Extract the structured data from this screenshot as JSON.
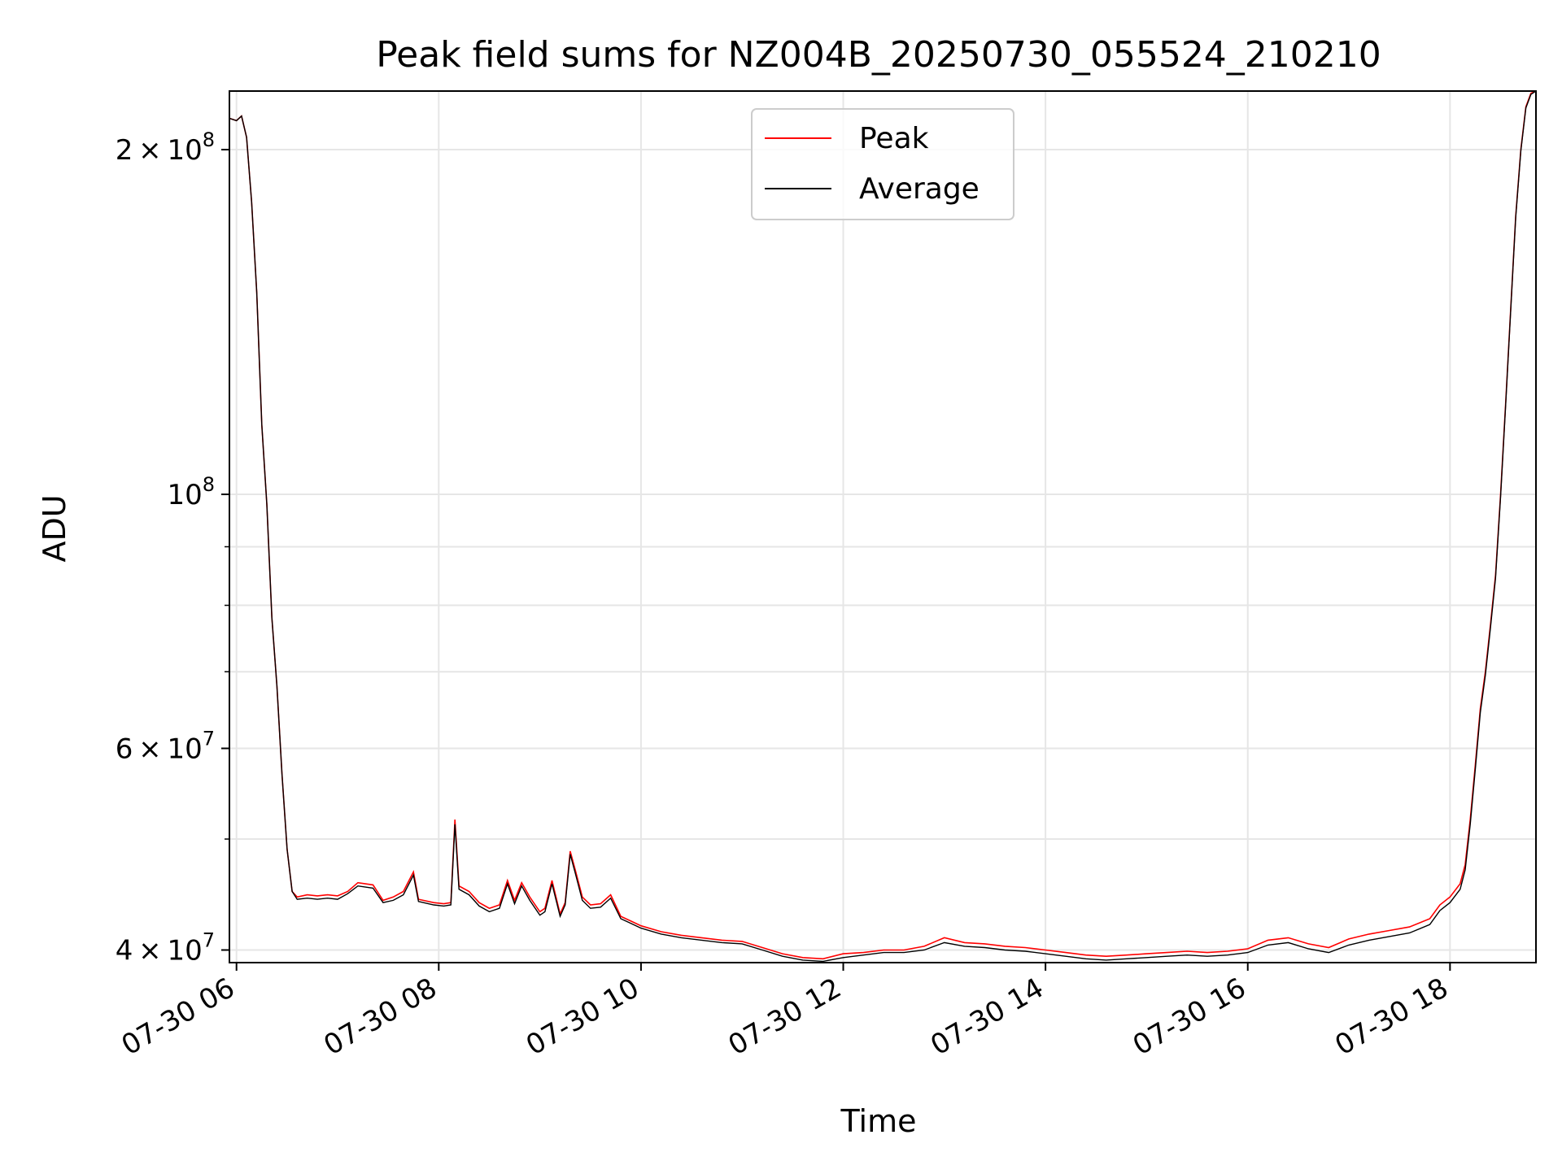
{
  "chart_data": {
    "type": "line",
    "title": "Peak field sums for NZ004B_20250730_055524_210210",
    "xlabel": "Time",
    "ylabel": "ADU",
    "x_tick_labels": [
      "07-30 06",
      "07-30 08",
      "07-30 10",
      "07-30 12",
      "07-30 14",
      "07-30 16",
      "07-30 18"
    ],
    "x_ticks_hours": [
      6,
      8,
      10,
      12,
      14,
      16,
      18
    ],
    "xlim_hours": [
      5.93,
      18.85
    ],
    "y_scale": "log",
    "ylim": [
      39000000,
      225000000
    ],
    "y_major_ticks": [
      {
        "value": 40000000,
        "mant": "4",
        "exp": "7"
      },
      {
        "value": 60000000,
        "mant": "6",
        "exp": "7"
      },
      {
        "value": 100000000,
        "mant": "",
        "exp": "8"
      },
      {
        "value": 200000000,
        "mant": "2",
        "exp": "8"
      }
    ],
    "y_minor_ticks": [
      50000000,
      70000000,
      80000000,
      90000000
    ],
    "grid": true,
    "legend_position": "upper center",
    "series": [
      {
        "name": "Peak",
        "color": "#ff0000",
        "points": [
          [
            5.93,
            213000000
          ],
          [
            6.0,
            212000000
          ],
          [
            6.05,
            214000000
          ],
          [
            6.1,
            205000000
          ],
          [
            6.15,
            180000000
          ],
          [
            6.2,
            150000000
          ],
          [
            6.25,
            115000000
          ],
          [
            6.3,
            98000000
          ],
          [
            6.35,
            78000000
          ],
          [
            6.4,
            68000000
          ],
          [
            6.45,
            57000000
          ],
          [
            6.5,
            49000000
          ],
          [
            6.55,
            45000000
          ],
          [
            6.6,
            44500000
          ],
          [
            6.7,
            44700000
          ],
          [
            6.8,
            44600000
          ],
          [
            6.9,
            44700000
          ],
          [
            7.0,
            44600000
          ],
          [
            7.1,
            45000000
          ],
          [
            7.2,
            45800000
          ],
          [
            7.35,
            45600000
          ],
          [
            7.45,
            44200000
          ],
          [
            7.55,
            44500000
          ],
          [
            7.65,
            45000000
          ],
          [
            7.75,
            46800000
          ],
          [
            7.8,
            44300000
          ],
          [
            7.95,
            44000000
          ],
          [
            8.05,
            43900000
          ],
          [
            8.12,
            44000000
          ],
          [
            8.16,
            52000000
          ],
          [
            8.2,
            45500000
          ],
          [
            8.3,
            45000000
          ],
          [
            8.4,
            44000000
          ],
          [
            8.5,
            43500000
          ],
          [
            8.6,
            43800000
          ],
          [
            8.68,
            46000000
          ],
          [
            8.75,
            44200000
          ],
          [
            8.82,
            45800000
          ],
          [
            8.9,
            44500000
          ],
          [
            9.0,
            43200000
          ],
          [
            9.05,
            43500000
          ],
          [
            9.12,
            46000000
          ],
          [
            9.2,
            43000000
          ],
          [
            9.25,
            44000000
          ],
          [
            9.3,
            48800000
          ],
          [
            9.35,
            47000000
          ],
          [
            9.42,
            44500000
          ],
          [
            9.5,
            43800000
          ],
          [
            9.6,
            43900000
          ],
          [
            9.7,
            44700000
          ],
          [
            9.8,
            42800000
          ],
          [
            9.9,
            42400000
          ],
          [
            10.0,
            42000000
          ],
          [
            10.2,
            41500000
          ],
          [
            10.4,
            41200000
          ],
          [
            10.6,
            41000000
          ],
          [
            10.8,
            40800000
          ],
          [
            11.0,
            40700000
          ],
          [
            11.2,
            40200000
          ],
          [
            11.4,
            39700000
          ],
          [
            11.6,
            39400000
          ],
          [
            11.8,
            39300000
          ],
          [
            12.0,
            39700000
          ],
          [
            12.2,
            39800000
          ],
          [
            12.4,
            40000000
          ],
          [
            12.6,
            40000000
          ],
          [
            12.8,
            40300000
          ],
          [
            13.0,
            41000000
          ],
          [
            13.2,
            40600000
          ],
          [
            13.4,
            40500000
          ],
          [
            13.6,
            40300000
          ],
          [
            13.8,
            40200000
          ],
          [
            14.0,
            40000000
          ],
          [
            14.2,
            39800000
          ],
          [
            14.4,
            39600000
          ],
          [
            14.6,
            39500000
          ],
          [
            14.8,
            39600000
          ],
          [
            15.0,
            39700000
          ],
          [
            15.2,
            39800000
          ],
          [
            15.4,
            39900000
          ],
          [
            15.6,
            39800000
          ],
          [
            15.8,
            39900000
          ],
          [
            16.0,
            40100000
          ],
          [
            16.2,
            40800000
          ],
          [
            16.4,
            41000000
          ],
          [
            16.6,
            40500000
          ],
          [
            16.8,
            40200000
          ],
          [
            17.0,
            40900000
          ],
          [
            17.2,
            41300000
          ],
          [
            17.4,
            41600000
          ],
          [
            17.6,
            41900000
          ],
          [
            17.8,
            42600000
          ],
          [
            17.9,
            43800000
          ],
          [
            18.0,
            44500000
          ],
          [
            18.1,
            45700000
          ],
          [
            18.15,
            47500000
          ],
          [
            18.2,
            52000000
          ],
          [
            18.25,
            58000000
          ],
          [
            18.3,
            65000000
          ],
          [
            18.35,
            70000000
          ],
          [
            18.4,
            77000000
          ],
          [
            18.45,
            85000000
          ],
          [
            18.5,
            100000000
          ],
          [
            18.55,
            120000000
          ],
          [
            18.6,
            145000000
          ],
          [
            18.65,
            175000000
          ],
          [
            18.7,
            200000000
          ],
          [
            18.75,
            218000000
          ],
          [
            18.8,
            224000000
          ],
          [
            18.85,
            225000000
          ]
        ]
      },
      {
        "name": "Average",
        "color": "#000000",
        "points": [
          [
            5.93,
            213000000
          ],
          [
            6.0,
            212000000
          ],
          [
            6.05,
            214000000
          ],
          [
            6.1,
            205000000
          ],
          [
            6.15,
            180000000
          ],
          [
            6.2,
            150000000
          ],
          [
            6.25,
            115000000
          ],
          [
            6.3,
            98000000
          ],
          [
            6.35,
            78000000
          ],
          [
            6.4,
            68000000
          ],
          [
            6.45,
            57000000
          ],
          [
            6.5,
            49000000
          ],
          [
            6.55,
            45000000
          ],
          [
            6.6,
            44300000
          ],
          [
            6.7,
            44400000
          ],
          [
            6.8,
            44300000
          ],
          [
            6.9,
            44400000
          ],
          [
            7.0,
            44300000
          ],
          [
            7.1,
            44800000
          ],
          [
            7.2,
            45500000
          ],
          [
            7.35,
            45300000
          ],
          [
            7.45,
            44000000
          ],
          [
            7.55,
            44200000
          ],
          [
            7.65,
            44700000
          ],
          [
            7.75,
            46500000
          ],
          [
            7.8,
            44100000
          ],
          [
            7.95,
            43800000
          ],
          [
            8.05,
            43700000
          ],
          [
            8.12,
            43800000
          ],
          [
            8.16,
            51500000
          ],
          [
            8.2,
            45200000
          ],
          [
            8.3,
            44700000
          ],
          [
            8.4,
            43700000
          ],
          [
            8.5,
            43200000
          ],
          [
            8.6,
            43500000
          ],
          [
            8.68,
            45700000
          ],
          [
            8.75,
            43900000
          ],
          [
            8.82,
            45500000
          ],
          [
            8.9,
            44200000
          ],
          [
            9.0,
            42900000
          ],
          [
            9.05,
            43200000
          ],
          [
            9.12,
            45700000
          ],
          [
            9.2,
            42800000
          ],
          [
            9.25,
            43800000
          ],
          [
            9.3,
            48500000
          ],
          [
            9.35,
            46700000
          ],
          [
            9.42,
            44200000
          ],
          [
            9.5,
            43500000
          ],
          [
            9.6,
            43600000
          ],
          [
            9.7,
            44400000
          ],
          [
            9.8,
            42600000
          ],
          [
            9.9,
            42200000
          ],
          [
            10.0,
            41800000
          ],
          [
            10.2,
            41300000
          ],
          [
            10.4,
            41000000
          ],
          [
            10.6,
            40800000
          ],
          [
            10.8,
            40600000
          ],
          [
            11.0,
            40500000
          ],
          [
            11.2,
            40000000
          ],
          [
            11.4,
            39500000
          ],
          [
            11.6,
            39200000
          ],
          [
            11.8,
            39100000
          ],
          [
            12.0,
            39400000
          ],
          [
            12.2,
            39600000
          ],
          [
            12.4,
            39800000
          ],
          [
            12.6,
            39800000
          ],
          [
            12.8,
            40000000
          ],
          [
            13.0,
            40600000
          ],
          [
            13.2,
            40300000
          ],
          [
            13.4,
            40200000
          ],
          [
            13.6,
            40000000
          ],
          [
            13.8,
            39900000
          ],
          [
            14.0,
            39700000
          ],
          [
            14.2,
            39500000
          ],
          [
            14.4,
            39300000
          ],
          [
            14.6,
            39200000
          ],
          [
            14.8,
            39300000
          ],
          [
            15.0,
            39400000
          ],
          [
            15.2,
            39500000
          ],
          [
            15.4,
            39600000
          ],
          [
            15.6,
            39500000
          ],
          [
            15.8,
            39600000
          ],
          [
            16.0,
            39800000
          ],
          [
            16.2,
            40400000
          ],
          [
            16.4,
            40600000
          ],
          [
            16.6,
            40100000
          ],
          [
            16.8,
            39800000
          ],
          [
            17.0,
            40400000
          ],
          [
            17.2,
            40800000
          ],
          [
            17.4,
            41100000
          ],
          [
            17.6,
            41400000
          ],
          [
            17.8,
            42100000
          ],
          [
            17.9,
            43300000
          ],
          [
            18.0,
            44000000
          ],
          [
            18.1,
            45200000
          ],
          [
            18.15,
            47000000
          ],
          [
            18.2,
            51500000
          ],
          [
            18.25,
            57500000
          ],
          [
            18.3,
            64500000
          ],
          [
            18.35,
            69500000
          ],
          [
            18.4,
            76500000
          ],
          [
            18.45,
            84500000
          ],
          [
            18.5,
            99500000
          ],
          [
            18.55,
            119500000
          ],
          [
            18.6,
            144500000
          ],
          [
            18.65,
            174500000
          ],
          [
            18.7,
            199500000
          ],
          [
            18.75,
            217500000
          ],
          [
            18.8,
            223500000
          ],
          [
            18.85,
            225000000
          ]
        ]
      }
    ]
  }
}
